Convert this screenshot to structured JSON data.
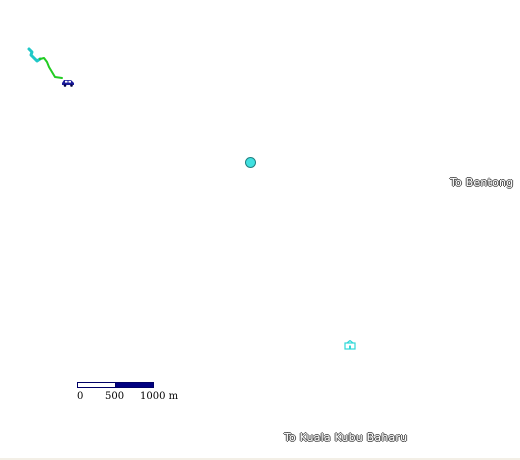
{
  "map": {
    "labels": {
      "bentong": "To Bentong",
      "kuala_kubu": "To Kuala Kubu Baharu"
    },
    "markers": {
      "center": "location-dot",
      "poi": "building-icon",
      "vehicle": "car-icon"
    },
    "colors": {
      "route_start": "#20c8c8",
      "route_end": "#22cc22",
      "marker": "#40e0e0",
      "car": "#1a1a9a",
      "scale_dark": "#000080"
    }
  },
  "scalebar": {
    "tick_0": "0",
    "tick_500": "500",
    "tick_1000": "1000 m"
  }
}
